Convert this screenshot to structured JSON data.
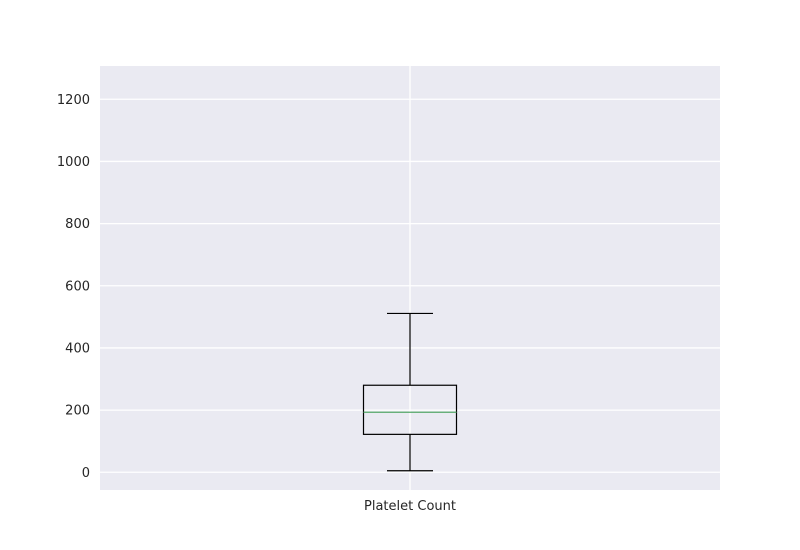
{
  "chart_data": {
    "type": "box",
    "categories": [
      "Platelet Count"
    ],
    "boxes": [
      {
        "category": "Platelet Count",
        "whisker_low": 5,
        "q1": 122,
        "median": 193,
        "q3": 280,
        "whisker_high": 511
      }
    ],
    "yticks": [
      0,
      200,
      400,
      600,
      800,
      1000,
      1200
    ],
    "ylim": [
      -57,
      1307
    ],
    "grid": true,
    "title": "",
    "xlabel": "",
    "ylabel": "",
    "colors": {
      "plot_background": "#eaeaf2",
      "grid": "#ffffff",
      "box": "#000000",
      "median": "#55a868"
    }
  }
}
